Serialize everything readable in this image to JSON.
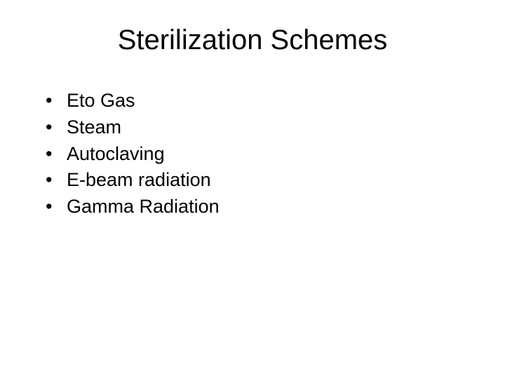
{
  "slide": {
    "title": "Sterilization Schemes",
    "title_fontsize": 40,
    "body_fontsize": 27,
    "background_color": "#ffffff",
    "text_color": "#000000",
    "bullets": [
      {
        "marker": "•",
        "text": "Eto Gas"
      },
      {
        "marker": "•",
        "text": "Steam"
      },
      {
        "marker": "•",
        "text": "Autoclaving"
      },
      {
        "marker": "•",
        "text": "E-beam radiation"
      },
      {
        "marker": "•",
        "text": "Gamma Radiation"
      }
    ]
  }
}
